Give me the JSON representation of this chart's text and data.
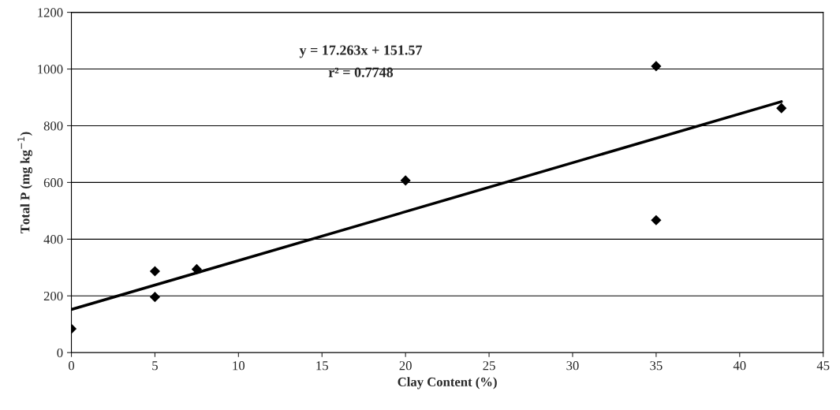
{
  "chart_data": {
    "type": "scatter",
    "xlabel": "Clay Content (%)",
    "ylabel": "Total P (mg kg$^{−1}$)",
    "x": [
      0,
      5,
      5,
      7.5,
      20,
      35,
      35,
      42.5
    ],
    "series": [
      {
        "color": "#000000",
        "marker": "diamond",
        "values": [
          84,
          287,
          196,
          294,
          607,
          1010,
          467,
          862
        ]
      },
      {
        "type": "line",
        "color": "#000000",
        "marker": "none",
        "line_style": "solid",
        "x": [
          0,
          42.5
        ],
        "values": [
          152,
          885
        ]
      }
    ],
    "annotations": [
      "y = 17.263x + 151.57",
      "r² = 0.7748"
    ],
    "xlim": [
      0,
      45
    ],
    "xticks": [
      0,
      5,
      10,
      15,
      20,
      25,
      30,
      35,
      40,
      45
    ],
    "ylim": [
      0,
      1200
    ],
    "yticks": [
      0,
      200,
      400,
      600,
      800,
      1000,
      1200
    ],
    "grid": "y",
    "legend": false
  }
}
